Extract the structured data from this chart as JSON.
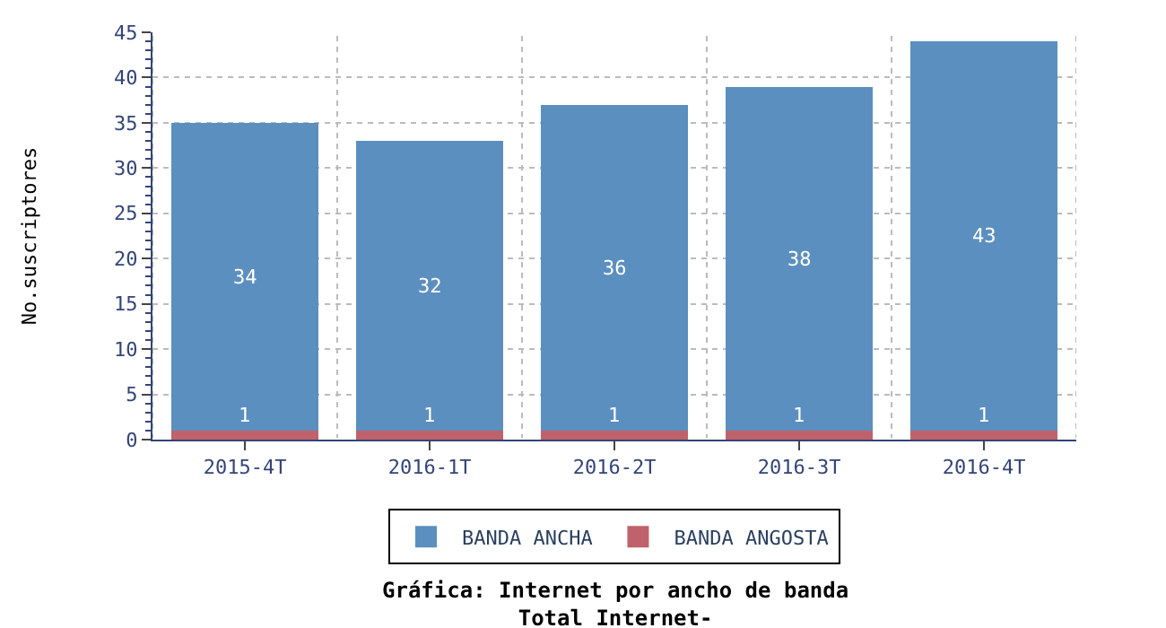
{
  "chart_data": {
    "type": "bar",
    "stacked": true,
    "title": "Gráfica: Internet por ancho de banda",
    "subtitle": "Total Internet-",
    "ylabel": "No.suscriptores",
    "categories": [
      "2015-4T",
      "2016-1T",
      "2016-2T",
      "2016-3T",
      "2016-4T"
    ],
    "series": [
      {
        "name": "BANDA ANGOSTA",
        "color": "#c0626b",
        "values": [
          1,
          1,
          1,
          1,
          1
        ]
      },
      {
        "name": "BANDA ANCHA",
        "color": "#5b8fbf",
        "values": [
          34,
          32,
          36,
          38,
          43
        ]
      }
    ],
    "ylim": [
      0,
      45
    ],
    "yticks": [
      0,
      5,
      10,
      15,
      20,
      25,
      30,
      35,
      40,
      45
    ],
    "grid": true,
    "legend": "bottom",
    "data_labels": true
  }
}
